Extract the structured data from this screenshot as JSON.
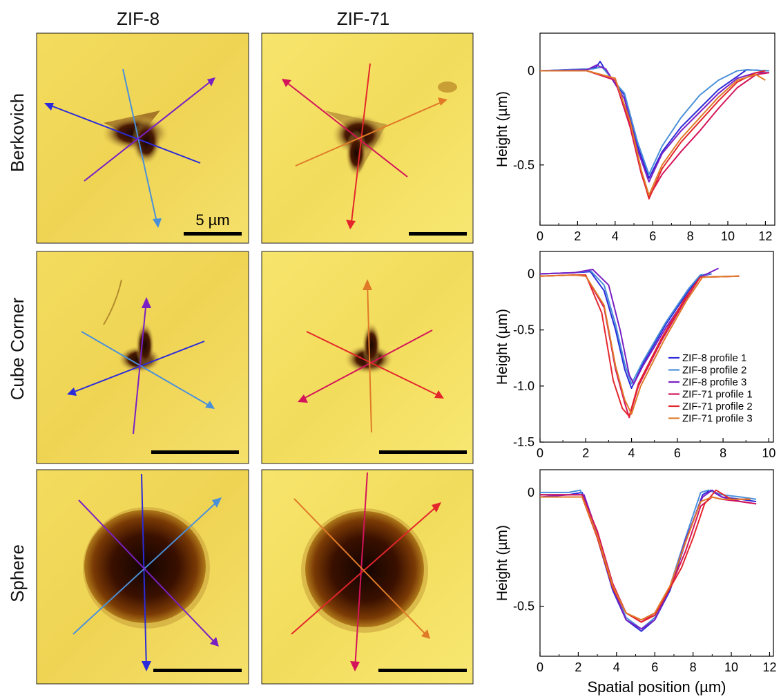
{
  "columns": [
    "ZIF-8",
    "ZIF-71"
  ],
  "rows": [
    "Berkovich",
    "Cube Corner",
    "Sphere"
  ],
  "scale_bar_label": "5 µm",
  "colors": {
    "zif8_p1": "#2b2bd9",
    "zif8_p2": "#4a90d9",
    "zif8_p3": "#7a1fc4",
    "zif71_p1": "#d4145a",
    "zif71_p2": "#e3262b",
    "zif71_p3": "#e07a28",
    "film": "#f0d85a",
    "pit": "#2a0c00"
  },
  "chart_data": [
    {
      "type": "line",
      "panel": "Berkovich",
      "xlabel": "",
      "ylabel": "Height (µm)",
      "xlim": [
        0,
        12.5
      ],
      "ylim": [
        -0.82,
        0.2
      ],
      "xticks": [
        0,
        2,
        4,
        6,
        8,
        10,
        12
      ],
      "yticks": [
        0,
        -0.5
      ],
      "ytick_labels": [
        "0",
        "-0.5"
      ],
      "series": [
        {
          "name": "ZIF-8 profile 1",
          "color": "#2b2bd9",
          "x": [
            0,
            2.6,
            3.0,
            3.2,
            3.5,
            4.5,
            5.2,
            5.8,
            6.5,
            7.5,
            8.5,
            9.5,
            10.5,
            11.0,
            12.2
          ],
          "y": [
            0,
            0.01,
            0.02,
            0.05,
            0,
            -0.13,
            -0.4,
            -0.57,
            -0.43,
            -0.3,
            -0.2,
            -0.1,
            -0.03,
            0.005,
            0
          ]
        },
        {
          "name": "ZIF-8 profile 2",
          "color": "#4a90d9",
          "x": [
            0,
            2.8,
            3.3,
            4.5,
            5.2,
            5.8,
            6.5,
            7.5,
            8.5,
            9.5,
            10.5,
            11.0,
            12.2
          ],
          "y": [
            0,
            0.01,
            0.02,
            -0.12,
            -0.38,
            -0.55,
            -0.4,
            -0.25,
            -0.13,
            -0.05,
            0,
            0.005,
            0
          ]
        },
        {
          "name": "ZIF-8 profile 3",
          "color": "#7a1fc4",
          "x": [
            0,
            2.5,
            3.0,
            3.5,
            4.5,
            5.2,
            5.8,
            6.5,
            7.5,
            8.5,
            9.5,
            10.5,
            11.5,
            12.2
          ],
          "y": [
            0,
            0.005,
            0.03,
            0.01,
            -0.15,
            -0.42,
            -0.59,
            -0.44,
            -0.32,
            -0.22,
            -0.12,
            -0.04,
            -0.01,
            -0.01
          ]
        },
        {
          "name": "ZIF-71 profile 1",
          "color": "#d4145a",
          "x": [
            0,
            2.5,
            4.0,
            4.8,
            5.4,
            5.8,
            6.5,
            7.5,
            8.5,
            9.5,
            10.5,
            11.5,
            12.2
          ],
          "y": [
            0,
            0,
            -0.05,
            -0.3,
            -0.55,
            -0.67,
            -0.55,
            -0.43,
            -0.32,
            -0.2,
            -0.09,
            -0.02,
            -0.01
          ]
        },
        {
          "name": "ZIF-71 profile 2",
          "color": "#e3262b",
          "x": [
            0,
            2.5,
            4.0,
            4.8,
            5.4,
            5.8,
            6.5,
            7.5,
            8.5,
            9.5,
            10.5,
            11.5,
            12.0
          ],
          "y": [
            0,
            0,
            -0.04,
            -0.28,
            -0.54,
            -0.68,
            -0.52,
            -0.38,
            -0.27,
            -0.16,
            -0.06,
            -0.01,
            0
          ]
        },
        {
          "name": "ZIF-71 profile 3",
          "color": "#e07a28",
          "x": [
            0,
            2.5,
            4.0,
            4.8,
            5.4,
            5.8,
            6.5,
            7.5,
            8.5,
            9.5,
            10.5,
            11.5,
            12.0
          ],
          "y": [
            0,
            0,
            -0.04,
            -0.27,
            -0.53,
            -0.66,
            -0.5,
            -0.36,
            -0.25,
            -0.14,
            -0.05,
            -0.02,
            -0.05
          ]
        }
      ]
    },
    {
      "type": "line",
      "panel": "Cube Corner",
      "xlabel": "",
      "ylabel": "Height (µm)",
      "xlim": [
        0,
        10.2
      ],
      "ylim": [
        -1.5,
        0.2
      ],
      "xticks": [
        0,
        2,
        4,
        6,
        8,
        10
      ],
      "yticks": [
        0,
        -0.5,
        -1.0,
        -1.5
      ],
      "ytick_labels": [
        "0",
        "-0.5",
        "-1.0",
        "-1.5"
      ],
      "series": [
        {
          "name": "ZIF-8 profile 1",
          "color": "#2b2bd9",
          "x": [
            0,
            1.5,
            2.2,
            2.8,
            3.3,
            3.7,
            4.0,
            4.5,
            5.5,
            6.5,
            7.0,
            7.5
          ],
          "y": [
            0,
            0.01,
            0.02,
            -0.15,
            -0.5,
            -0.85,
            -1.02,
            -0.8,
            -0.45,
            -0.15,
            -0.02,
            0
          ]
        },
        {
          "name": "ZIF-8 profile 2",
          "color": "#4a90d9",
          "x": [
            0,
            1.5,
            2.2,
            2.8,
            3.3,
            3.7,
            4.0,
            4.5,
            5.5,
            6.5,
            7.0,
            7.5
          ],
          "y": [
            0,
            0.01,
            0.03,
            -0.1,
            -0.45,
            -0.8,
            -0.98,
            -0.78,
            -0.43,
            -0.13,
            -0.01,
            0
          ]
        },
        {
          "name": "ZIF-8 profile 3",
          "color": "#7a1fc4",
          "x": [
            0,
            1.5,
            2.3,
            3.0,
            3.5,
            3.9,
            4.1,
            4.5,
            5.5,
            6.5,
            7.0,
            7.8
          ],
          "y": [
            0,
            0.01,
            0.04,
            -0.1,
            -0.5,
            -0.9,
            -0.98,
            -0.82,
            -0.48,
            -0.18,
            -0.03,
            0.05
          ]
        },
        {
          "name": "ZIF-71 profile 1",
          "color": "#d4145a",
          "x": [
            0,
            1.5,
            2.0,
            2.8,
            3.3,
            3.7,
            3.9,
            4.3,
            5.3,
            6.3,
            7.0,
            8.7
          ],
          "y": [
            -0.02,
            -0.01,
            -0.02,
            -0.3,
            -0.85,
            -1.15,
            -1.28,
            -1.0,
            -0.6,
            -0.25,
            -0.03,
            -0.02
          ]
        },
        {
          "name": "ZIF-71 profile 2",
          "color": "#e3262b",
          "x": [
            0,
            1.5,
            2.0,
            2.7,
            3.2,
            3.6,
            3.9,
            4.3,
            5.3,
            6.3,
            7.0,
            8.7
          ],
          "y": [
            -0.02,
            -0.01,
            -0.01,
            -0.35,
            -0.95,
            -1.2,
            -1.27,
            -0.98,
            -0.58,
            -0.23,
            -0.03,
            -0.02
          ]
        },
        {
          "name": "ZIF-71 profile 3",
          "color": "#e07a28",
          "x": [
            0,
            1.5,
            2.0,
            2.8,
            3.3,
            3.7,
            4.0,
            4.4,
            5.4,
            6.4,
            7.1,
            8.7
          ],
          "y": [
            -0.02,
            -0.01,
            -0.02,
            -0.28,
            -0.82,
            -1.12,
            -1.25,
            -1.0,
            -0.6,
            -0.24,
            -0.03,
            -0.02
          ]
        }
      ]
    },
    {
      "type": "line",
      "panel": "Sphere",
      "xlabel": "Spatial position (µm)",
      "ylabel": "Height (µm)",
      "xlim": [
        0,
        12.2
      ],
      "ylim": [
        -0.72,
        0.1
      ],
      "xticks": [
        0,
        2,
        4,
        6,
        8,
        10,
        12
      ],
      "yticks": [
        0,
        -0.5
      ],
      "ytick_labels": [
        "0",
        "-0.5"
      ],
      "series": [
        {
          "name": "ZIF-8 profile 1",
          "color": "#2b2bd9",
          "x": [
            0,
            1.5,
            2.2,
            3.0,
            3.8,
            4.5,
            5.3,
            6.0,
            6.8,
            7.6,
            8.5,
            8.9,
            9.5,
            10.5,
            11.3
          ],
          "y": [
            -0.01,
            -0.01,
            0,
            -0.2,
            -0.43,
            -0.56,
            -0.61,
            -0.56,
            -0.43,
            -0.22,
            -0.01,
            0.01,
            -0.02,
            -0.03,
            -0.04
          ]
        },
        {
          "name": "ZIF-8 profile 2",
          "color": "#4a90d9",
          "x": [
            0,
            1.5,
            2.1,
            3.0,
            3.8,
            4.5,
            5.3,
            6.0,
            6.8,
            7.6,
            8.4,
            8.8,
            9.5,
            10.5,
            11.3
          ],
          "y": [
            0,
            0,
            0.01,
            -0.18,
            -0.41,
            -0.55,
            -0.6,
            -0.55,
            -0.41,
            -0.2,
            0,
            0.01,
            -0.01,
            -0.02,
            -0.03
          ]
        },
        {
          "name": "ZIF-8 profile 3",
          "color": "#7a1fc4",
          "x": [
            0,
            1.5,
            2.3,
            3.0,
            3.8,
            4.5,
            5.3,
            6.0,
            6.8,
            7.6,
            8.5,
            9.0,
            9.5,
            10.5,
            11.3
          ],
          "y": [
            -0.02,
            -0.01,
            -0.01,
            -0.18,
            -0.42,
            -0.56,
            -0.6,
            -0.56,
            -0.42,
            -0.21,
            -0.02,
            0.01,
            -0.02,
            -0.04,
            -0.05
          ]
        },
        {
          "name": "ZIF-71 profile 1",
          "color": "#d4145a",
          "x": [
            0,
            1.5,
            2.2,
            3.0,
            3.8,
            4.5,
            5.3,
            6.0,
            6.8,
            7.6,
            8.4,
            9.0,
            9.5,
            10.5,
            11.3
          ],
          "y": [
            -0.01,
            -0.01,
            -0.01,
            -0.17,
            -0.4,
            -0.53,
            -0.57,
            -0.53,
            -0.42,
            -0.26,
            -0.06,
            -0.02,
            -0.03,
            -0.04,
            -0.05
          ]
        },
        {
          "name": "ZIF-71 profile 2",
          "color": "#e3262b",
          "x": [
            0,
            1.5,
            2.2,
            3.0,
            3.8,
            4.5,
            5.3,
            6.0,
            6.8,
            7.4,
            8.0,
            8.6,
            9.2,
            10.0,
            11.0
          ],
          "y": [
            -0.02,
            -0.02,
            -0.02,
            -0.2,
            -0.42,
            -0.53,
            -0.57,
            -0.54,
            -0.42,
            -0.33,
            -0.2,
            -0.05,
            0.01,
            -0.03,
            -0.03
          ]
        },
        {
          "name": "ZIF-71 profile 3",
          "color": "#e07a28",
          "x": [
            0,
            1.5,
            2.2,
            3.0,
            3.8,
            4.5,
            5.3,
            6.0,
            6.8,
            7.6,
            8.4,
            9.0,
            9.5,
            10.5,
            11.0
          ],
          "y": [
            -0.02,
            -0.02,
            -0.02,
            -0.19,
            -0.41,
            -0.53,
            -0.56,
            -0.53,
            -0.41,
            -0.22,
            -0.04,
            -0.02,
            -0.03,
            -0.03,
            -0.03
          ]
        }
      ]
    }
  ]
}
